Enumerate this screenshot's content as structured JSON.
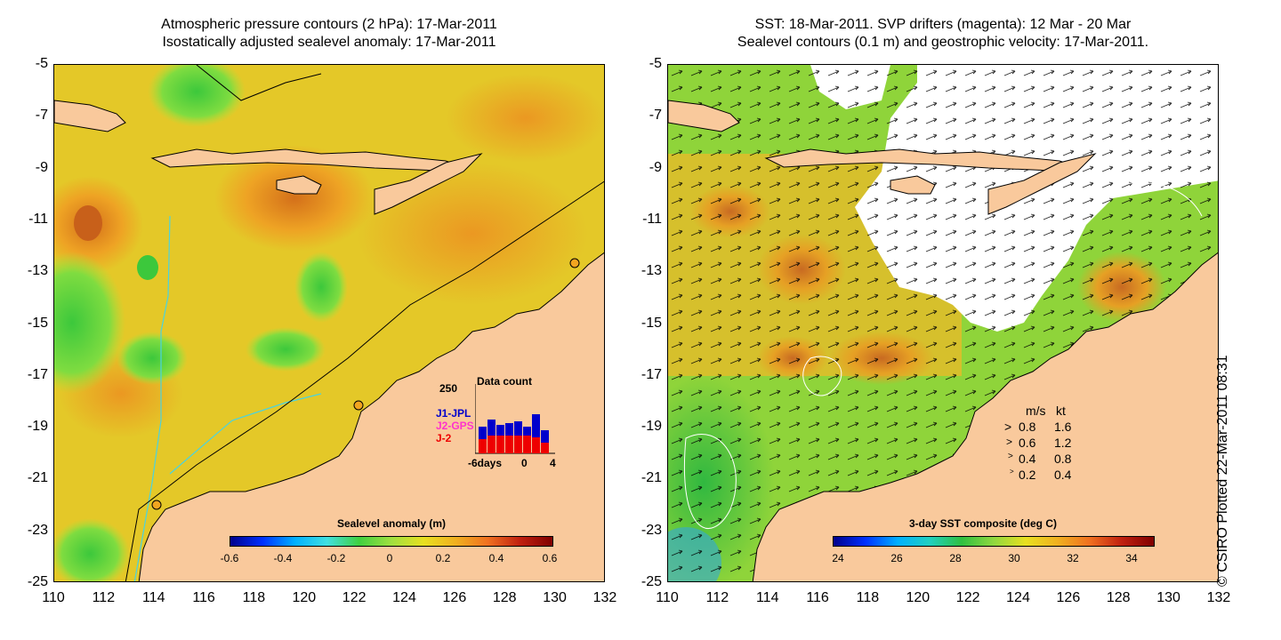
{
  "left_panel": {
    "title_line1": "Atmospheric pressure contours (2 hPa): 17-Mar-2011",
    "title_line2": "Isostatically adjusted sealevel anomaly: 17-Mar-2011",
    "colorbar": {
      "title": "Sealevel anomaly (m)",
      "ticks": [
        "-0.6",
        "-0.4",
        "-0.2",
        "0",
        "0.2",
        "0.4",
        "0.6"
      ]
    },
    "data_count": {
      "title": "Data count",
      "ymax_label": "250",
      "xticks": [
        "-6days",
        "0",
        "4"
      ],
      "series": [
        {
          "name": "J1-JPL",
          "color": "#0000cc"
        },
        {
          "name": "J2-GPS",
          "color": "#ff33cc"
        },
        {
          "name": "J-2",
          "color": "#ee0000"
        }
      ]
    }
  },
  "right_panel": {
    "title_line1": "SST: 18-Mar-2011. SVP drifters (magenta): 12 Mar - 20 Mar",
    "title_line2": "Sealevel contours (0.1 m) and geostrophic velocity: 17-Mar-2011.",
    "colorbar": {
      "title": "3-day SST composite (deg C)",
      "ticks": [
        "24",
        "26",
        "28",
        "30",
        "32",
        "34"
      ]
    },
    "velocity_legend": {
      "header_ms": "m/s",
      "header_kt": "kt",
      "rows": [
        {
          "ms": "0.8",
          "kt": "1.6"
        },
        {
          "ms": "0.6",
          "kt": "1.2"
        },
        {
          "ms": "0.4",
          "kt": "0.8"
        },
        {
          "ms": "0.2",
          "kt": "0.4"
        }
      ]
    }
  },
  "axes": {
    "lat_labels": [
      "-5",
      "-7",
      "-9",
      "-11",
      "-13",
      "-15",
      "-17",
      "-19",
      "-21",
      "-23",
      "-25"
    ],
    "lon_labels": [
      "110",
      "112",
      "114",
      "116",
      "118",
      "120",
      "122",
      "124",
      "126",
      "128",
      "130",
      "132"
    ]
  },
  "credit": "© CSIRO Plotted 22-Mar-2011 08:31",
  "colors": {
    "land": "#f9c99c",
    "ocean_yellow": "#e8d62a",
    "ocean_orange": "#f2a520",
    "ocean_green": "#5ccf3c",
    "contour_cyan": "#4ad3e0"
  }
}
